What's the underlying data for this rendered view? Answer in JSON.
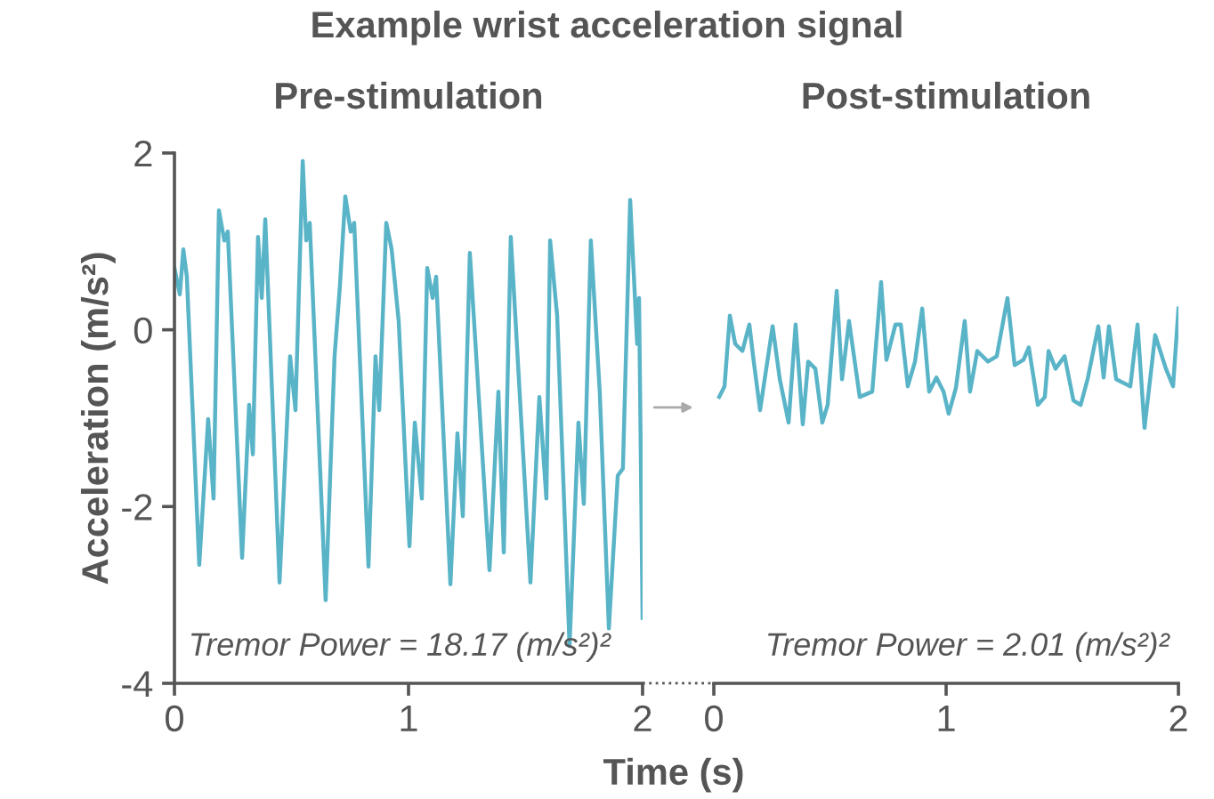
{
  "chart_data": [
    {
      "type": "line",
      "title": "Example wrist acceleration signal",
      "subtitle": "Pre-stimulation",
      "ylabel": "Acceleration (m/s²)",
      "xlabel": "Time (s)",
      "xlim": [
        0,
        2
      ],
      "xticks": [
        0,
        1,
        2
      ],
      "ylim": [
        -4,
        2
      ],
      "yticks": [
        -4,
        -2,
        0,
        2
      ],
      "grid": false,
      "legend": false,
      "marker": "none",
      "line_style": "solid",
      "annotations": [
        "Tremor Power = 18.17 (m/s²)²"
      ],
      "series": [
        {
          "color": "#5ab4c8",
          "x": [
            0.0,
            0.023,
            0.038,
            0.053,
            0.106,
            0.144,
            0.167,
            0.19,
            0.213,
            0.228,
            0.289,
            0.319,
            0.335,
            0.357,
            0.373,
            0.388,
            0.449,
            0.494,
            0.517,
            0.548,
            0.563,
            0.578,
            0.646,
            0.684,
            0.707,
            0.73,
            0.753,
            0.768,
            0.829,
            0.859,
            0.875,
            0.905,
            0.928,
            0.958,
            1.004,
            1.027,
            1.057,
            1.08,
            1.103,
            1.118,
            1.179,
            1.209,
            1.232,
            1.262,
            1.346,
            1.384,
            1.407,
            1.437,
            1.521,
            1.559,
            1.589,
            1.605,
            1.635,
            1.688,
            1.726,
            1.749,
            1.779,
            1.817,
            1.856,
            1.894,
            1.916,
            1.947,
            1.977,
            1.985,
            2.0
          ],
          "values": [
            0.7,
            0.4,
            0.91,
            0.6,
            -2.66,
            -1.01,
            -1.91,
            1.35,
            1.01,
            1.11,
            -2.58,
            -0.85,
            -1.41,
            1.05,
            0.36,
            1.25,
            -2.86,
            -0.3,
            -0.91,
            1.91,
            1.01,
            1.21,
            -3.06,
            -0.3,
            0.5,
            1.51,
            1.11,
            1.21,
            -2.68,
            -0.3,
            -0.91,
            1.21,
            0.91,
            0.1,
            -2.45,
            -1.05,
            -1.91,
            0.7,
            0.36,
            0.6,
            -2.88,
            -1.17,
            -2.11,
            0.87,
            -2.72,
            -0.7,
            -2.52,
            1.05,
            -2.86,
            -0.76,
            -1.91,
            1.01,
            0.16,
            -3.58,
            -1.05,
            -1.97,
            1.01,
            -0.7,
            -3.38,
            -1.65,
            -1.57,
            1.47,
            -0.16,
            0.36,
            -3.26
          ]
        }
      ]
    },
    {
      "type": "line",
      "subtitle": "Post-stimulation",
      "tick_labels": "x",
      "xlim": [
        0,
        2
      ],
      "xticks": [
        0,
        1,
        2
      ],
      "ylim": [
        -4,
        2
      ],
      "grid": false,
      "legend": false,
      "marker": "none",
      "line_style": "solid",
      "annotations": [
        "Tremor Power = 2.01 (m/s²)²"
      ],
      "series": [
        {
          "color": "#5ab4c8",
          "x": [
            0.023,
            0.046,
            0.069,
            0.092,
            0.123,
            0.153,
            0.169,
            0.199,
            0.253,
            0.284,
            0.322,
            0.352,
            0.383,
            0.406,
            0.437,
            0.467,
            0.49,
            0.529,
            0.552,
            0.582,
            0.628,
            0.682,
            0.72,
            0.743,
            0.782,
            0.805,
            0.835,
            0.866,
            0.897,
            0.927,
            0.958,
            0.989,
            1.011,
            1.042,
            1.08,
            1.103,
            1.134,
            1.18,
            1.218,
            1.264,
            1.295,
            1.333,
            1.356,
            1.395,
            1.425,
            1.441,
            1.471,
            1.51,
            1.548,
            1.579,
            1.609,
            1.655,
            1.678,
            1.701,
            1.732,
            1.793,
            1.824,
            1.854,
            1.9,
            1.946,
            1.977,
            2.0
          ],
          "values": [
            -0.76,
            -0.64,
            0.16,
            -0.16,
            -0.24,
            0.06,
            -0.3,
            -0.91,
            0.04,
            -0.56,
            -1.05,
            0.06,
            -1.07,
            -0.36,
            -0.44,
            -1.05,
            -0.85,
            0.44,
            -0.56,
            0.1,
            -0.76,
            -0.7,
            0.54,
            -0.34,
            0.06,
            0.06,
            -0.64,
            -0.36,
            0.24,
            -0.7,
            -0.54,
            -0.7,
            -0.95,
            -0.66,
            0.1,
            -0.7,
            -0.24,
            -0.36,
            -0.3,
            0.36,
            -0.4,
            -0.34,
            -0.2,
            -0.85,
            -0.76,
            -0.24,
            -0.44,
            -0.3,
            -0.8,
            -0.85,
            -0.56,
            0.04,
            -0.54,
            0.04,
            -0.56,
            -0.64,
            0.06,
            -1.11,
            -0.06,
            -0.44,
            -0.64,
            0.24
          ]
        }
      ]
    }
  ]
}
